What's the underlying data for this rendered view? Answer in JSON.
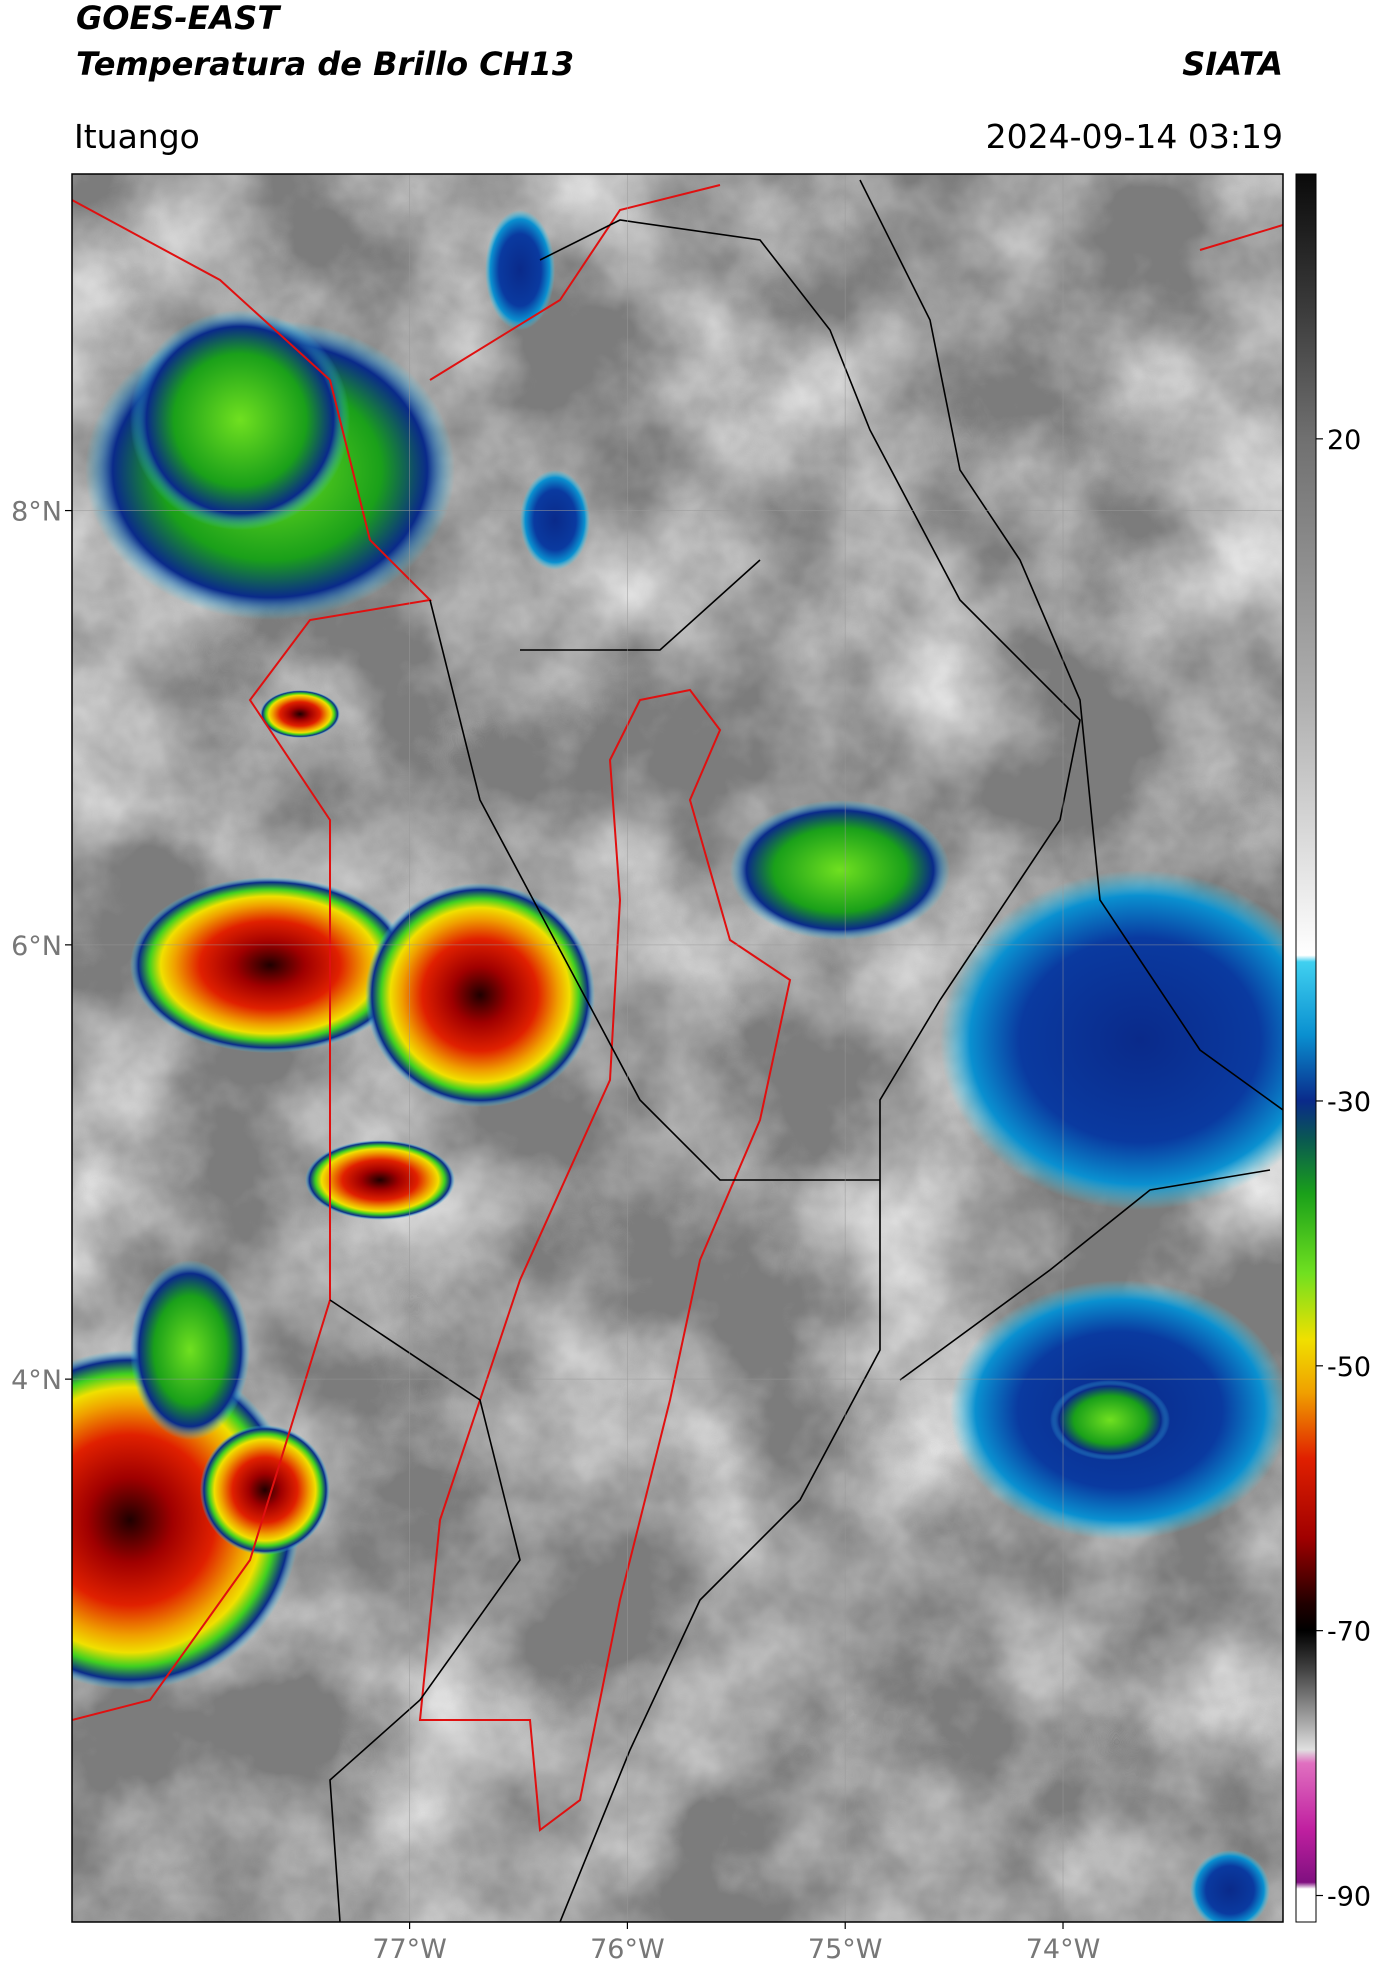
{
  "map": {
    "title_line1": "GOES-EAST",
    "title_line2": "Temperatura de Brillo CH13",
    "source": "SIATA",
    "location": "Ituango",
    "timestamp": "2024-09-14 03:19",
    "lonlim": [
      -78.55,
      -72.99
    ],
    "latlim": [
      1.5,
      9.55
    ],
    "lonticks": [
      {
        "value": -77,
        "label": "77°W"
      },
      {
        "value": -76,
        "label": "76°W"
      },
      {
        "value": -75,
        "label": "75°W"
      },
      {
        "value": -74,
        "label": "74°W"
      }
    ],
    "latticks": [
      {
        "value": 8,
        "label": "8°N"
      },
      {
        "value": 6,
        "label": "6°N"
      },
      {
        "value": 4,
        "label": "4°N"
      }
    ],
    "grid": true,
    "colorbar": {
      "lim": [
        -92,
        40
      ],
      "ticks": [
        20,
        -30,
        -50,
        -70,
        -90
      ],
      "stops": [
        {
          "value": 40,
          "color": "#0a0a0a"
        },
        {
          "value": 30,
          "color": "#3a3a3a"
        },
        {
          "value": 20,
          "color": "#707070"
        },
        {
          "value": 0,
          "color": "#b0b0b0"
        },
        {
          "value": -19,
          "color": "#ffffff"
        },
        {
          "value": -19.5,
          "color": "#40d0f0"
        },
        {
          "value": -25,
          "color": "#0a90d0"
        },
        {
          "value": -30,
          "color": "#0a2a8a"
        },
        {
          "value": -33,
          "color": "#0a5a50"
        },
        {
          "value": -37,
          "color": "#1aa01a"
        },
        {
          "value": -43,
          "color": "#70e020"
        },
        {
          "value": -48,
          "color": "#f0e000"
        },
        {
          "value": -52,
          "color": "#f0a000"
        },
        {
          "value": -57,
          "color": "#e02000"
        },
        {
          "value": -63,
          "color": "#a00000"
        },
        {
          "value": -68,
          "color": "#200000"
        },
        {
          "value": -70,
          "color": "#000000"
        },
        {
          "value": -73,
          "color": "#444444"
        },
        {
          "value": -77,
          "color": "#aaaaaa"
        },
        {
          "value": -79,
          "color": "#e0e0e0"
        },
        {
          "value": -80,
          "color": "#e070c0"
        },
        {
          "value": -85,
          "color": "#c020a0"
        },
        {
          "value": -89,
          "color": "#801080"
        },
        {
          "value": -89.5,
          "color": "#ffffff"
        },
        {
          "value": -92,
          "color": "#ffffff"
        }
      ]
    }
  }
}
